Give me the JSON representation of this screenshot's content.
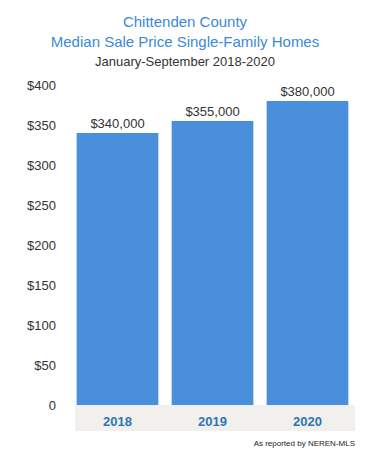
{
  "chart_data": {
    "type": "bar",
    "title": "Chittenden County\nMedian Sale Price Single-Family Homes",
    "subtitle": "January-September 2018-2020",
    "categories": [
      "2018",
      "2019",
      "2020"
    ],
    "values": [
      340,
      355,
      380
    ],
    "value_labels": [
      "$340,000",
      "$355,000",
      "$380,000"
    ],
    "data_labels": true,
    "color": "#4a8fdb",
    "ylim": [
      0,
      400
    ],
    "yticks": [
      0,
      {
        "value": 50,
        "label": "$50"
      },
      {
        "value": 100,
        "label": "$100"
      },
      {
        "value": 150,
        "label": "$150"
      },
      {
        "value": 200,
        "label": "$200"
      },
      {
        "value": 250,
        "label": "$250"
      },
      {
        "value": 300,
        "label": "$300"
      },
      {
        "value": 350,
        "label": "$350"
      },
      {
        "value": 400,
        "label": "$400"
      }
    ],
    "grid": false,
    "annotations": [
      "As reported by NEREN-MLS"
    ]
  }
}
